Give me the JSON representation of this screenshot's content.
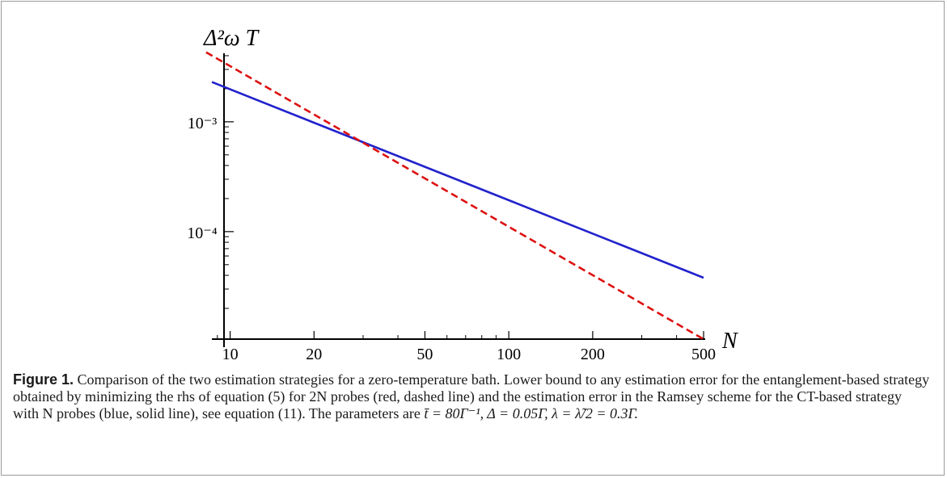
{
  "chart_data": {
    "type": "line",
    "xscale": "log",
    "yscale": "log",
    "xlabel": "N",
    "ylabel": "Δ²ω T",
    "xlim": [
      8.6,
      500
    ],
    "ylim": [
      1.05e-05,
      0.0045
    ],
    "x_ticks": [
      {
        "value": 10,
        "label": "10"
      },
      {
        "value": 20,
        "label": "20"
      },
      {
        "value": 50,
        "label": "50"
      },
      {
        "value": 100,
        "label": "100"
      },
      {
        "value": 200,
        "label": "200"
      },
      {
        "value": 500,
        "label": "500"
      }
    ],
    "y_ticks": [
      {
        "value": 0.001,
        "label": "10⁻³"
      },
      {
        "value": 0.0001,
        "label": "10⁻⁴"
      }
    ],
    "series": [
      {
        "name": "",
        "color": "#2222cc",
        "dash": "solid",
        "x": [
          8.6,
          500
        ],
        "y": [
          0.0023,
          3.8e-05
        ]
      },
      {
        "name": "",
        "color": "#dd1111",
        "dash": "dashed",
        "x": [
          8.2,
          500
        ],
        "y": [
          0.0043,
          1.05e-05
        ]
      }
    ],
    "grid": false,
    "legend": "none"
  },
  "caption": {
    "label": "Figure 1.",
    "text": "Comparison of the two estimation strategies for a zero-temperature bath. Lower bound to any estimation error for the entanglement-based strategy obtained by minimizing the rhs of equation (5) for 2N probes (red, dashed line) and the estimation error in the Ramsey scheme for the CT-based strategy with N probes (blue, solid line), see equation (11). The parameters are",
    "params": "t̄ = 80Γ⁻¹, Δ = 0.05Γ, λ = λ̃/2 = 0.3Γ."
  }
}
